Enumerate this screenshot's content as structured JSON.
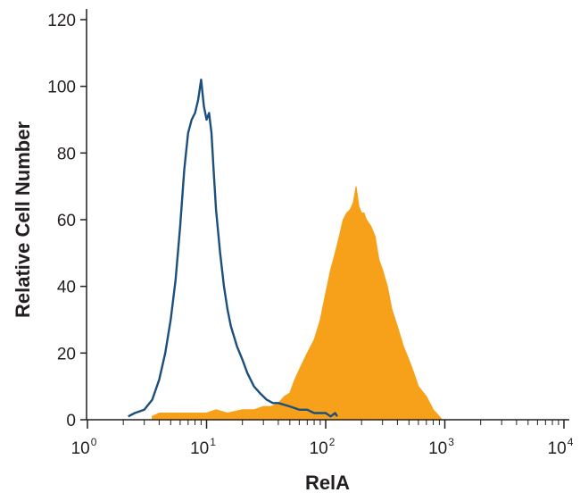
{
  "chart_data": {
    "type": "area",
    "title": "",
    "xlabel": "RelA",
    "ylabel": "Relative Cell Number",
    "x_scale": "log10",
    "xlim": [
      1,
      10000
    ],
    "ylim": [
      0,
      120
    ],
    "grid": false,
    "x_ticks": [
      {
        "base": "10",
        "exp": "0"
      },
      {
        "base": "10",
        "exp": "1"
      },
      {
        "base": "10",
        "exp": "2"
      },
      {
        "base": "10",
        "exp": "3"
      },
      {
        "base": "10",
        "exp": "4"
      }
    ],
    "y_ticks": [
      "0",
      "20",
      "40",
      "60",
      "80",
      "100",
      "120"
    ],
    "series": [
      {
        "style": "filled",
        "color": "#f7a11a",
        "x": [
          3.5,
          4.0,
          5.0,
          6.0,
          7.0,
          8.0,
          10.0,
          12.0,
          15.0,
          20.0,
          25.0,
          30.0,
          35.0,
          40.0,
          45.0,
          50.0,
          55.0,
          60.0,
          70.0,
          80.0,
          90.0,
          100.0,
          110.0,
          120.0,
          130.0,
          140.0,
          150.0,
          160.0,
          170.0,
          180.0,
          190.0,
          200.0,
          210.0,
          220.0,
          240.0,
          260.0,
          280.0,
          300.0,
          330.0,
          360.0,
          400.0,
          450.0,
          500.0,
          550.0,
          600.0,
          700.0,
          800.0,
          900.0,
          950.0
        ],
        "y": [
          1,
          2,
          2,
          2,
          2,
          2,
          2,
          3,
          2,
          3,
          3,
          4,
          4,
          5,
          7,
          8,
          12,
          15,
          20,
          24,
          30,
          38,
          45,
          50,
          55,
          60,
          62,
          63,
          65,
          70,
          64,
          62,
          62,
          60,
          58,
          55,
          48,
          45,
          40,
          33,
          28,
          22,
          18,
          14,
          10,
          7,
          3,
          1,
          0
        ]
      },
      {
        "style": "outline",
        "color": "#1b4f7d",
        "x": [
          2.2,
          2.5,
          3.0,
          3.5,
          4.0,
          4.5,
          5.0,
          5.5,
          6.0,
          6.5,
          7.0,
          7.5,
          8.0,
          8.5,
          9.0,
          9.5,
          10.0,
          10.5,
          11.0,
          11.5,
          12.0,
          13.0,
          14.0,
          15.0,
          16.0,
          18.0,
          20.0,
          22.0,
          25.0,
          28.0,
          32.0,
          36.0,
          40.0,
          50.0,
          60.0,
          70.0,
          80.0,
          90.0,
          100.0,
          110.0,
          120.0,
          125.0
        ],
        "y": [
          1,
          2,
          3,
          6,
          12,
          20,
          30,
          42,
          58,
          75,
          86,
          90,
          92,
          96,
          102,
          94,
          90,
          92,
          86,
          74,
          63,
          50,
          40,
          33,
          28,
          22,
          18,
          14,
          10,
          8,
          6,
          5,
          5,
          4,
          3,
          3,
          2,
          2,
          2,
          1,
          2,
          1
        ]
      }
    ]
  }
}
